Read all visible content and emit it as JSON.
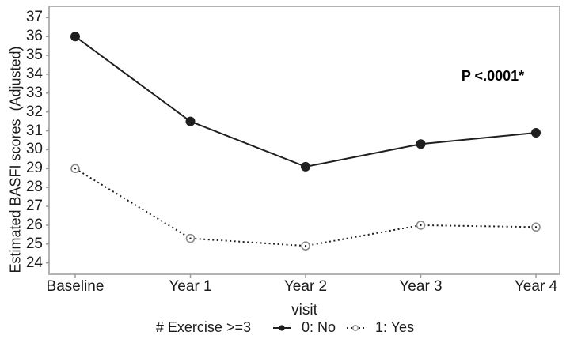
{
  "chart_data": {
    "type": "line",
    "title": "",
    "xlabel": "visit",
    "ylabel": "Estimated BASFI scores  (Adjusted)",
    "categories": [
      "Baseline",
      "Year 1",
      "Year 2",
      "Year 3",
      "Year 4"
    ],
    "series": [
      {
        "name": "0: No",
        "style": "solid",
        "marker": "filled-circle",
        "values": [
          36.0,
          31.5,
          29.1,
          30.3,
          30.9
        ]
      },
      {
        "name": "1: Yes",
        "style": "dotted",
        "marker": "open-circle",
        "values": [
          29.0,
          25.3,
          24.9,
          26.0,
          25.9
        ]
      }
    ],
    "yticks": [
      24,
      25,
      26,
      27,
      28,
      29,
      30,
      31,
      32,
      33,
      34,
      35,
      36,
      37
    ],
    "ylim": [
      23.4,
      37.6
    ],
    "grid": false,
    "legend_title": "# Exercise >=3",
    "legend_position": "bottom",
    "annotation": "P <.0001*"
  },
  "colors": {
    "line": "#1f1f1f",
    "open_marker_stroke": "#8c8c8c",
    "axis_border": "#b3b3b3",
    "tick": "#9a9a9a",
    "text": "#1c1c1c",
    "background": "#ffffff"
  }
}
